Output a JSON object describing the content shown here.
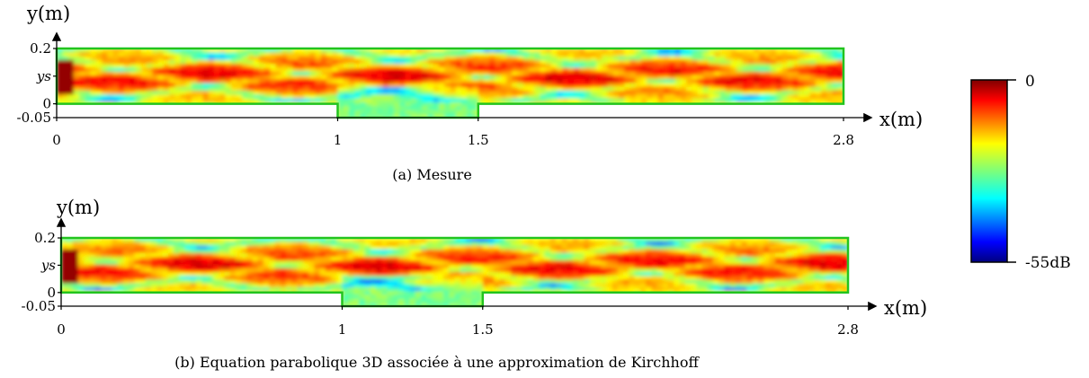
{
  "chart_data": [
    {
      "type": "heatmap",
      "caption": "(a) Mesure",
      "ylabel": "y(m)",
      "xlabel": "x(m)",
      "x_ticks": [
        {
          "value": 0,
          "label": "0"
        },
        {
          "value": 1,
          "label": "1"
        },
        {
          "value": 1.5,
          "label": "1.5"
        },
        {
          "value": 2.8,
          "label": "2.8"
        }
      ],
      "y_ticks": [
        {
          "value": 0.2,
          "label": "0.2"
        },
        {
          "value": 0.1,
          "label": "ys"
        },
        {
          "value": 0,
          "label": "0"
        },
        {
          "value": -0.05,
          "label": "-0.05"
        }
      ],
      "xlim": [
        0,
        2.8
      ],
      "ylim": [
        -0.05,
        0.2
      ],
      "domain_outline": [
        [
          0,
          0.2
        ],
        [
          2.8,
          0.2
        ],
        [
          2.8,
          0
        ],
        [
          1.5,
          0
        ],
        [
          1.5,
          -0.05
        ],
        [
          1,
          -0.05
        ],
        [
          1,
          0
        ],
        [
          0,
          0
        ]
      ],
      "outline_color": "#22c41e",
      "source_y": 0.1
    },
    {
      "type": "heatmap",
      "caption": "(b) Equation parabolique 3D associée à une approximation de Kirchhoff",
      "ylabel": "y(m)",
      "xlabel": "x(m)",
      "x_ticks": [
        {
          "value": 0,
          "label": "0"
        },
        {
          "value": 1,
          "label": "1"
        },
        {
          "value": 1.5,
          "label": "1.5"
        },
        {
          "value": 2.8,
          "label": "2.8"
        }
      ],
      "y_ticks": [
        {
          "value": 0.2,
          "label": "0.2"
        },
        {
          "value": 0.1,
          "label": "ys"
        },
        {
          "value": 0,
          "label": "0"
        },
        {
          "value": -0.05,
          "label": "-0.05"
        }
      ],
      "xlim": [
        0,
        2.8
      ],
      "ylim": [
        -0.05,
        0.2
      ],
      "domain_outline": [
        [
          0,
          0.2
        ],
        [
          2.8,
          0.2
        ],
        [
          2.8,
          0
        ],
        [
          1.5,
          0
        ],
        [
          1.5,
          -0.05
        ],
        [
          1,
          -0.05
        ],
        [
          1,
          0
        ],
        [
          0,
          0
        ]
      ],
      "outline_color": "#22c41e",
      "source_y": 0.1
    }
  ],
  "colorbar": {
    "max_label": "0",
    "min_label": "-55dB",
    "range": [
      -55,
      0
    ],
    "colormap": "jet"
  }
}
